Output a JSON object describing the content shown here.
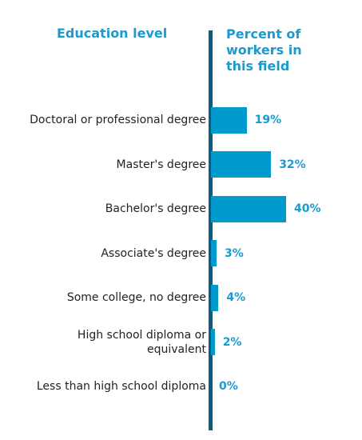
{
  "headers": {
    "left": "Education level",
    "right": "Percent of\nworkers in\nthis field"
  },
  "chart_data": {
    "type": "bar",
    "orientation": "horizontal",
    "categories": [
      "Doctoral or professional degree",
      "Master's degree",
      "Bachelor's degree",
      "Associate's degree",
      "Some college, no degree",
      "High school diploma or\nequivalent",
      "Less than high school diploma"
    ],
    "values": [
      19,
      32,
      40,
      3,
      4,
      2,
      0
    ],
    "value_labels": [
      "19%",
      "32%",
      "40%",
      "3%",
      "4%",
      "2%",
      "0%"
    ],
    "unit": "%",
    "xlim": [
      0,
      40
    ],
    "bar_color": "#009bcc",
    "label_color": "#1a9bd0",
    "axis_color": "#0e5c84"
  }
}
